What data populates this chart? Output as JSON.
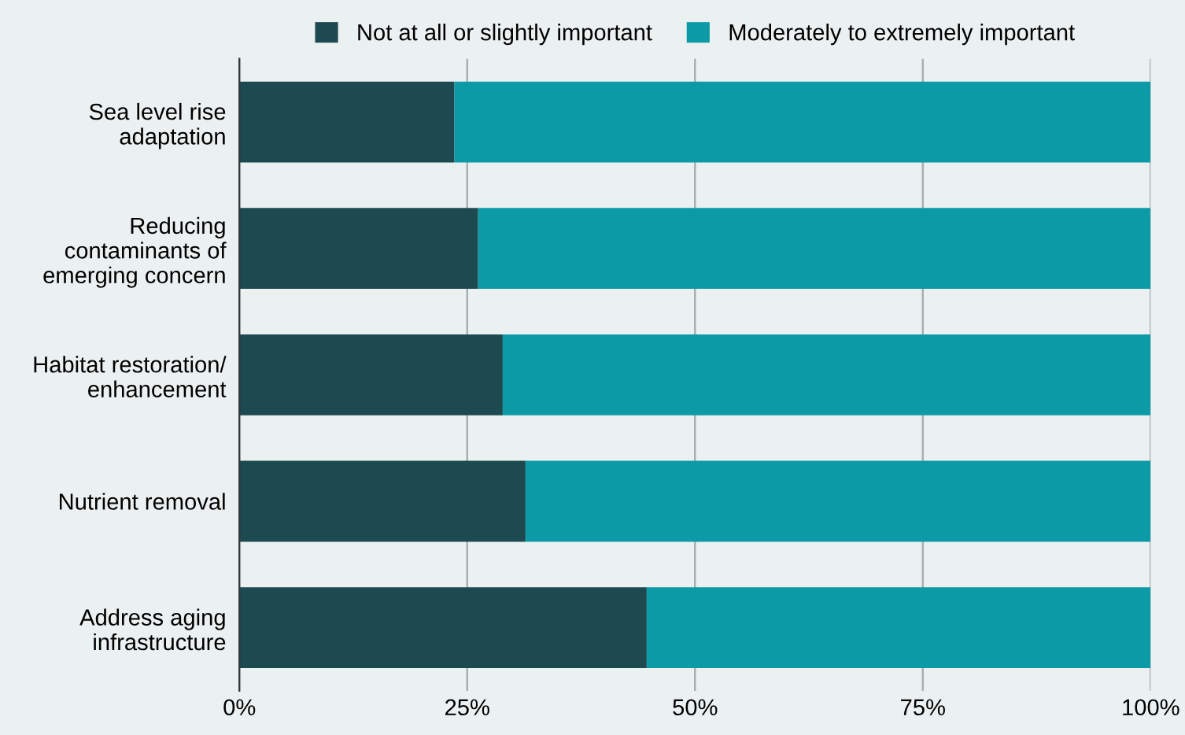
{
  "chart_data": {
    "type": "bar",
    "orientation": "horizontal",
    "stacked": true,
    "categories": [
      "Sea level rise\nadaptation",
      "Reducing\ncontaminants of\nemerging concern",
      "Habitat restoration/\nenhancement",
      "Nutrient removal",
      "Address aging\ninfrastructure"
    ],
    "series": [
      {
        "name": "Not at all or slightly important",
        "color": "#1d4a50",
        "values": [
          23.6,
          26.2,
          28.9,
          31.4,
          44.7
        ]
      },
      {
        "name": "Moderately to extremely important",
        "color": "#0c9aa6",
        "values": [
          76.4,
          73.8,
          71.1,
          68.6,
          55.3
        ]
      }
    ],
    "xlim": [
      0,
      100
    ],
    "xticks": [
      {
        "value": 0,
        "label": "0%"
      },
      {
        "value": 25,
        "label": "25%"
      },
      {
        "value": 50,
        "label": "50%"
      },
      {
        "value": 75,
        "label": "75%"
      },
      {
        "value": 100,
        "label": "100%"
      }
    ],
    "grid": "x",
    "legend": "top"
  }
}
